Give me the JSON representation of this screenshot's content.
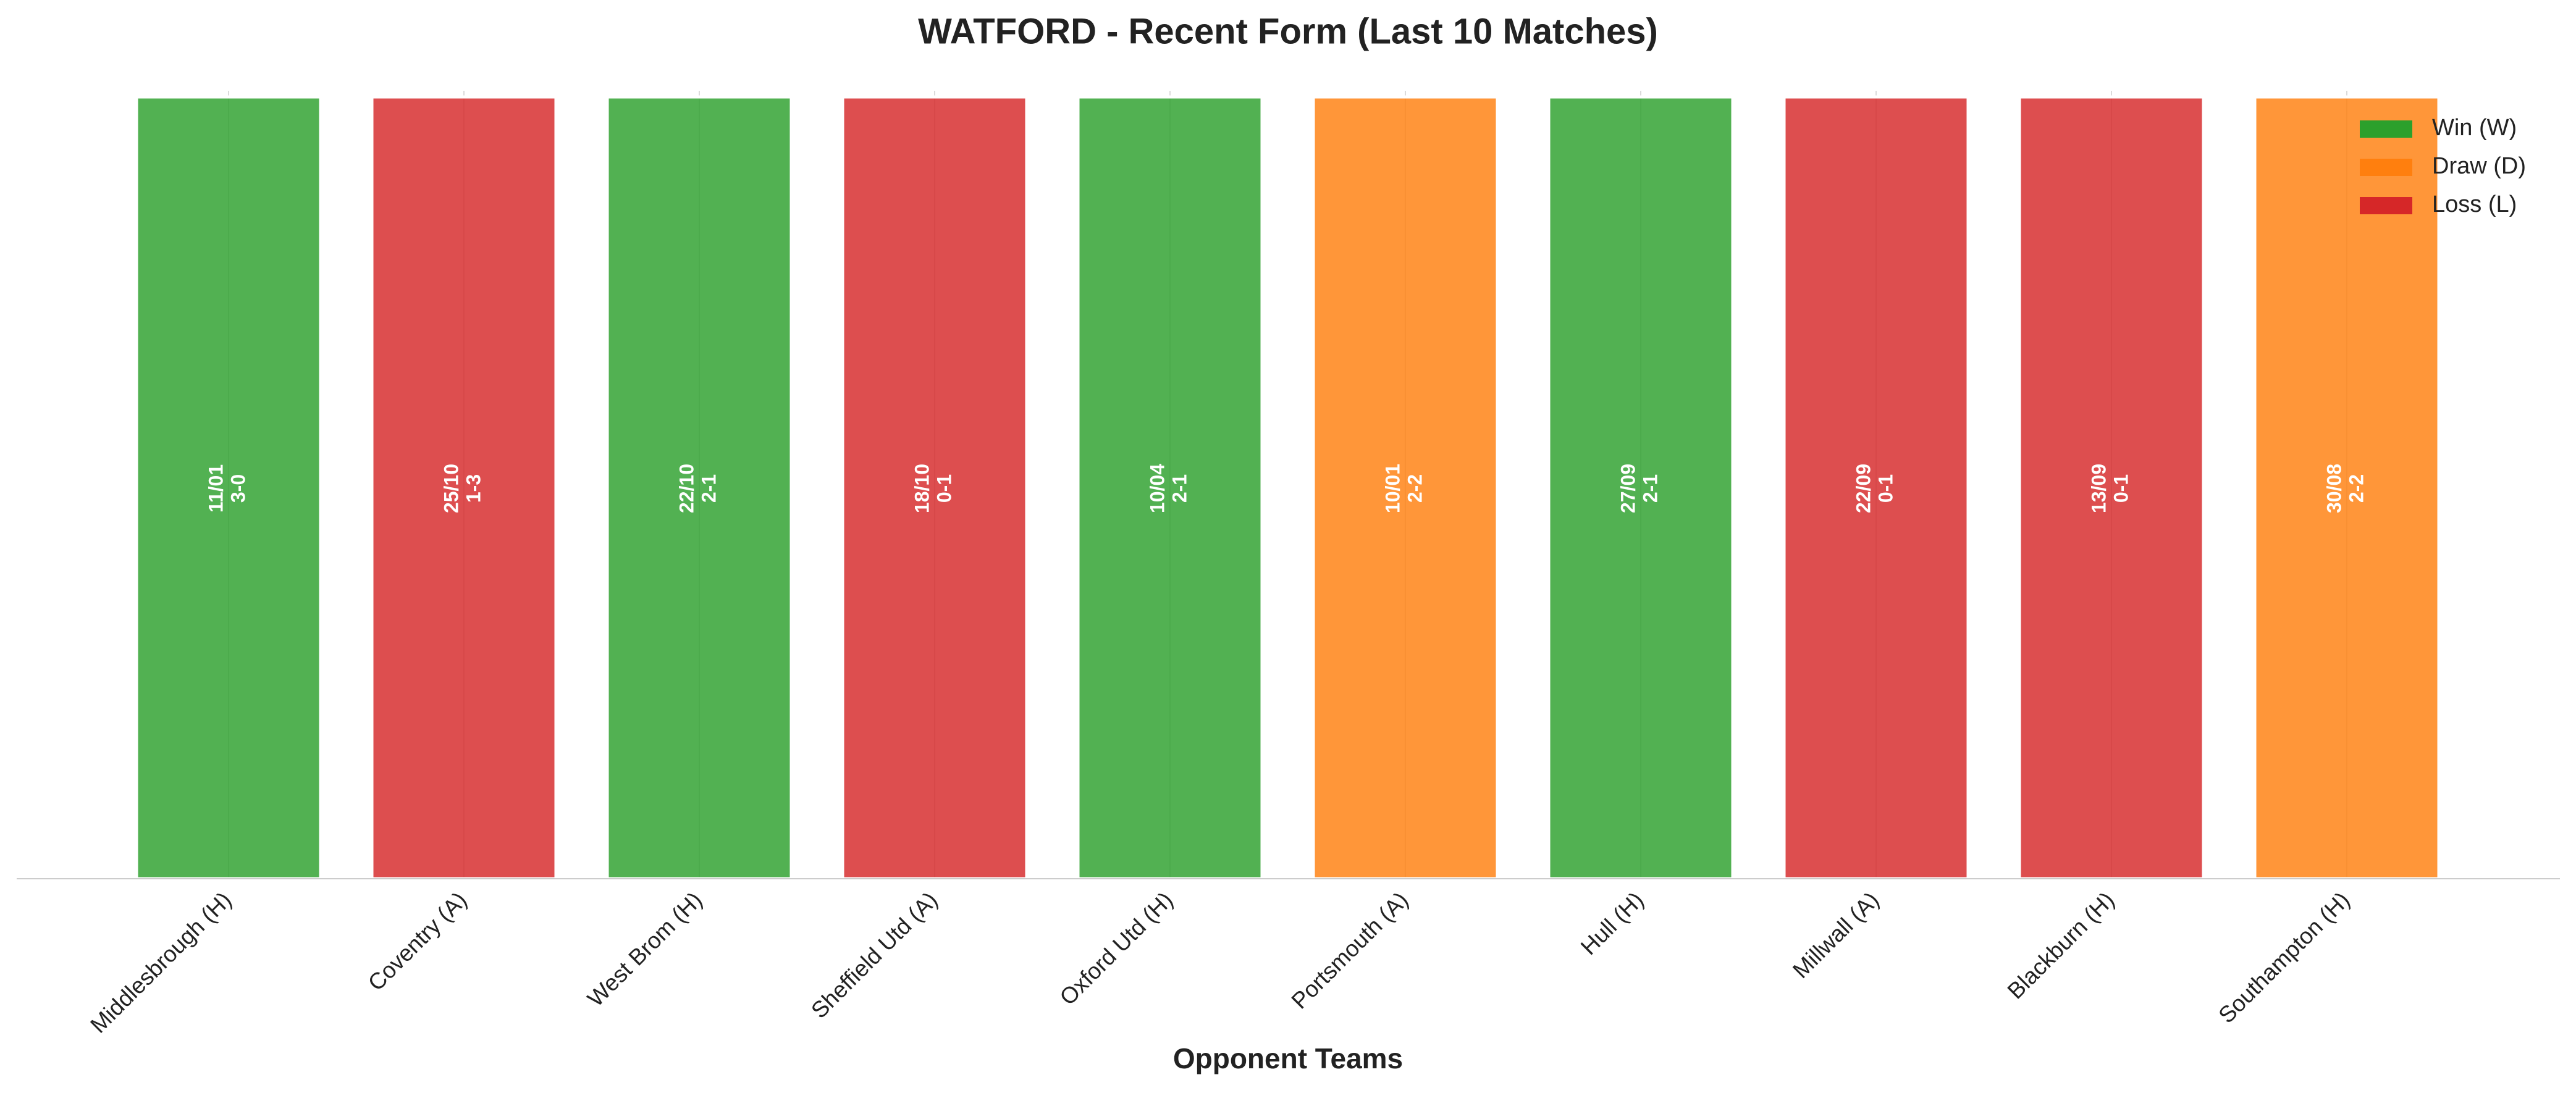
{
  "chart_data": {
    "type": "bar",
    "title": "WATFORD - Recent Form (Last 10 Matches)",
    "x_label": "Opponent Teams",
    "categories": [
      "Middlesbrough (H)",
      "Coventry (A)",
      "West Brom (H)",
      "Sheffield Utd (A)",
      "Oxford Utd (H)",
      "Portsmouth (A)",
      "Hull (H)",
      "Millwall (A)",
      "Blackburn (H)",
      "Southampton (H)"
    ],
    "values": [
      1,
      1,
      1,
      1,
      1,
      1,
      1,
      1,
      1,
      1
    ],
    "dates": [
      "11/01",
      "25/10",
      "22/10",
      "18/10",
      "10/04",
      "10/01",
      "27/09",
      "22/09",
      "13/09",
      "30/08"
    ],
    "scores": [
      "3-0",
      "1-3",
      "2-1",
      "0-1",
      "2-1",
      "2-2",
      "2-1",
      "0-1",
      "0-1",
      "2-2"
    ],
    "colors": [
      "#2ca02c",
      "#d62728",
      "#2ca02c",
      "#d62728",
      "#2ca02c",
      "#ff7f0e",
      "#2ca02c",
      "#d62728",
      "#d62728",
      "#ff7f0e"
    ],
    "legend": [
      {
        "name": "Win (W)",
        "color": "#2ca02c"
      },
      {
        "name": "Draw (D)",
        "color": "#ff7f0e"
      },
      {
        "name": "Loss (L)",
        "color": "#d62728"
      }
    ],
    "legend_position": "upper right",
    "ylim": [
      0,
      1
    ],
    "grid": true
  }
}
